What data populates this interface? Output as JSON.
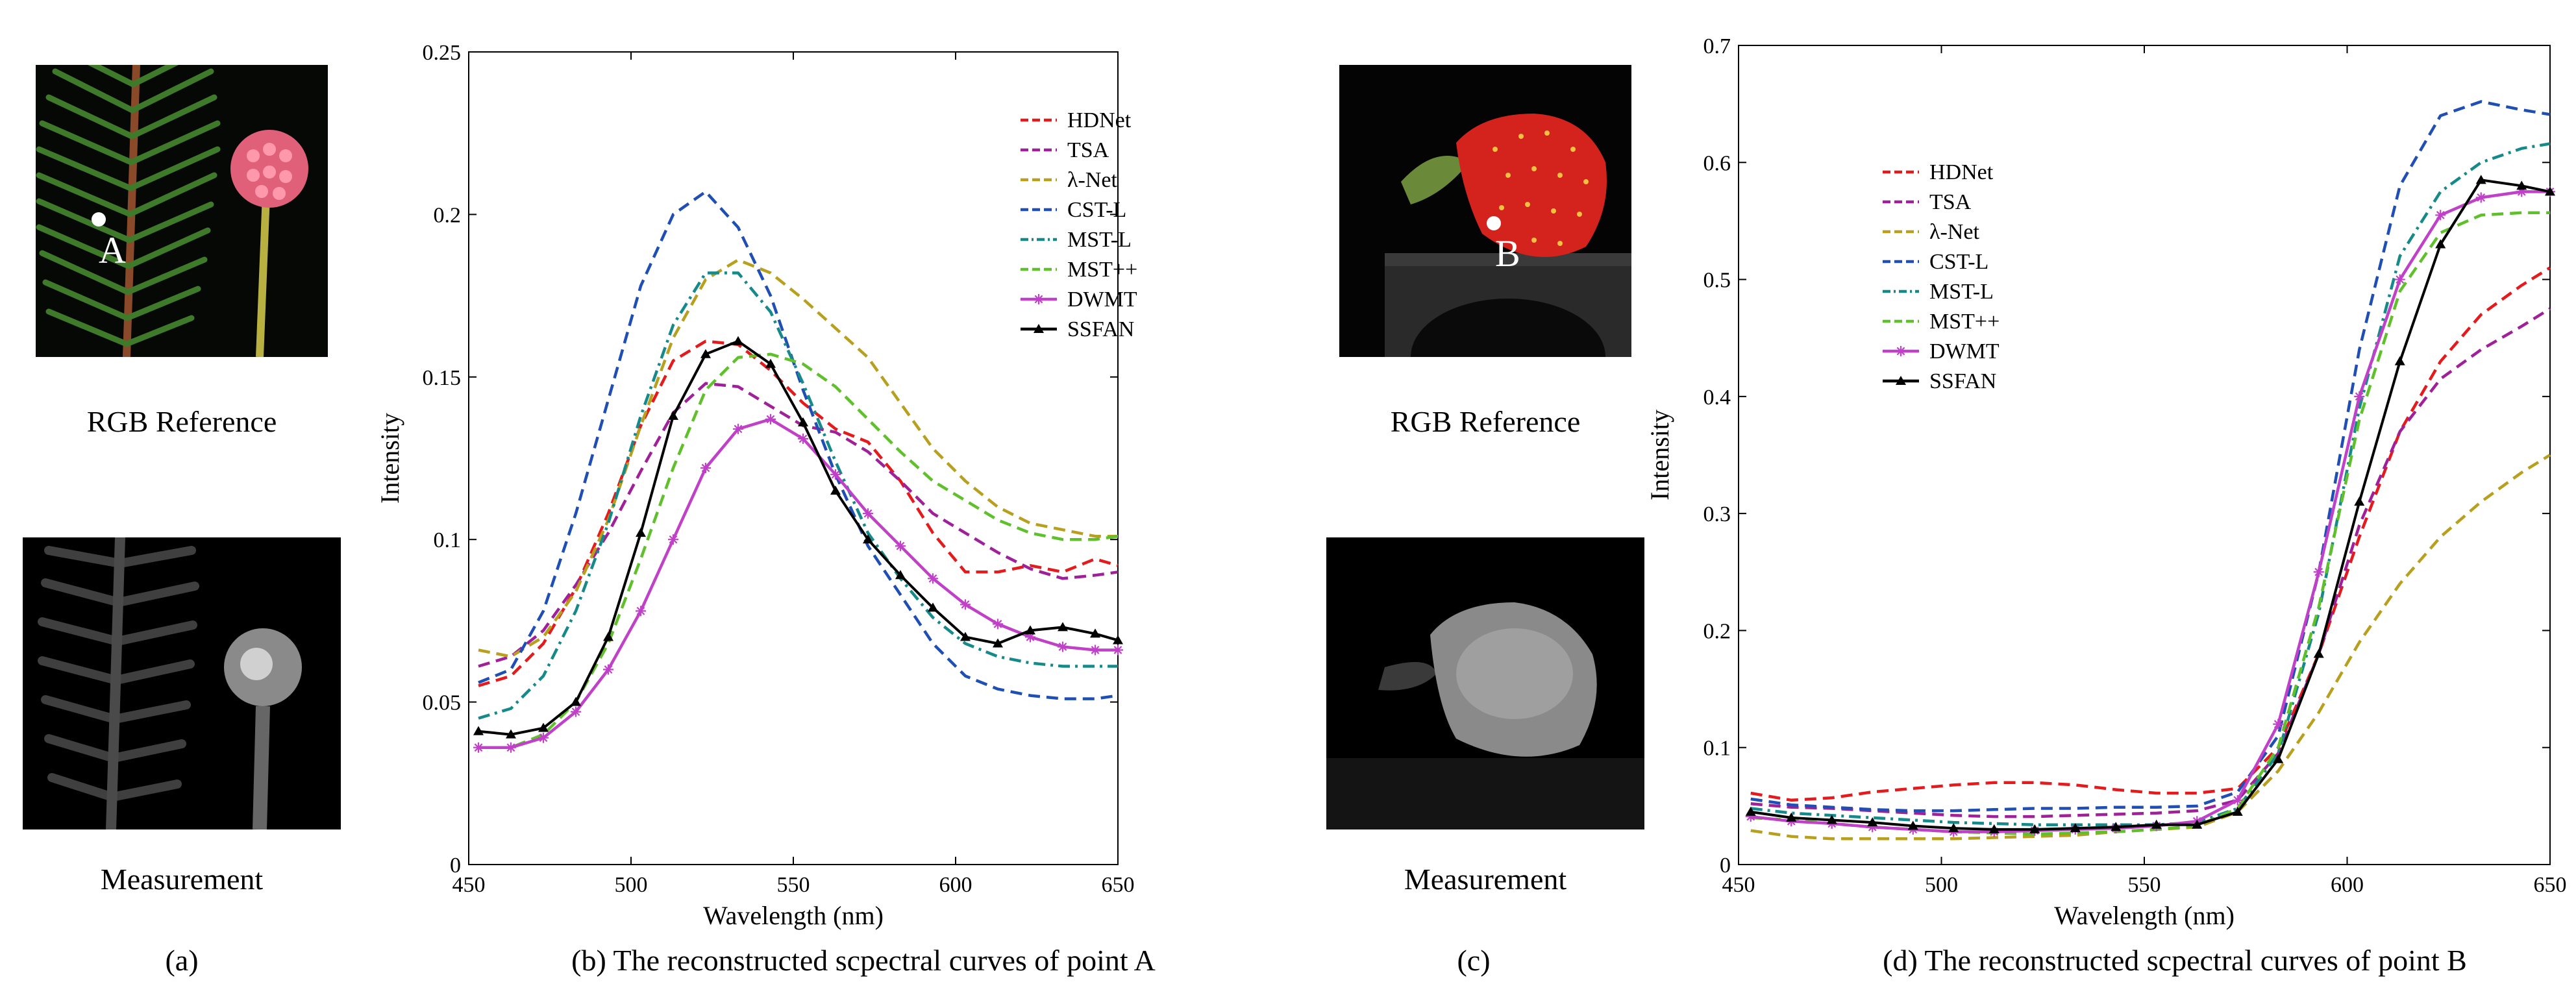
{
  "panels": {
    "a": {
      "rgb_label": "RGB Reference",
      "meas_label": "Measurement",
      "letter": "(a)",
      "point_label": "A"
    },
    "b": {
      "caption": "(b) The reconstructed scpectral curves of point A"
    },
    "c": {
      "rgb_label": "RGB Reference",
      "meas_label": "Measurement",
      "letter": "(c)",
      "point_label": "B"
    },
    "d": {
      "caption": "(d) The reconstructed scpectral curves of point B"
    }
  },
  "chart_data": [
    {
      "id": "pointA",
      "type": "line",
      "title": "",
      "xlabel": "Wavelength (nm)",
      "ylabel": "Intensity",
      "xlim": [
        450,
        650
      ],
      "ylim": [
        0,
        0.25
      ],
      "xticks": [
        450,
        500,
        550,
        600,
        650
      ],
      "yticks": [
        0,
        0.05,
        0.1,
        0.15,
        0.2,
        0.25
      ],
      "ytick_labels": [
        "0",
        "0.05",
        "0.1",
        "0.15",
        "0.2",
        "0.25"
      ],
      "legend_position": "top-right",
      "x": [
        453,
        463,
        473,
        483,
        493,
        503,
        513,
        523,
        533,
        543,
        553,
        563,
        573,
        583,
        593,
        603,
        613,
        623,
        633,
        643,
        650
      ],
      "series": [
        {
          "name": "HDNet",
          "color": "#e41a1c",
          "dash": "dash",
          "marker": "none",
          "values": [
            0.055,
            0.058,
            0.068,
            0.085,
            0.108,
            0.135,
            0.155,
            0.161,
            0.16,
            0.152,
            0.142,
            0.134,
            0.13,
            0.118,
            0.102,
            0.09,
            0.09,
            0.092,
            0.09,
            0.094,
            0.092
          ]
        },
        {
          "name": "TSA",
          "color": "#a0209a",
          "dash": "dash",
          "marker": "none",
          "values": [
            0.061,
            0.064,
            0.072,
            0.086,
            0.102,
            0.121,
            0.139,
            0.148,
            0.147,
            0.141,
            0.135,
            0.133,
            0.127,
            0.118,
            0.108,
            0.102,
            0.096,
            0.091,
            0.088,
            0.089,
            0.09
          ]
        },
        {
          "name": "λ-Net",
          "color": "#b8a01e",
          "dash": "dash",
          "marker": "none",
          "values": [
            0.066,
            0.064,
            0.07,
            0.084,
            0.106,
            0.135,
            0.162,
            0.18,
            0.186,
            0.182,
            0.174,
            0.165,
            0.156,
            0.142,
            0.128,
            0.118,
            0.11,
            0.105,
            0.103,
            0.101,
            0.101
          ]
        },
        {
          "name": "CST-L",
          "color": "#1f4fb4",
          "dash": "dash",
          "marker": "none",
          "values": [
            0.056,
            0.06,
            0.078,
            0.108,
            0.143,
            0.178,
            0.2,
            0.207,
            0.196,
            0.175,
            0.146,
            0.12,
            0.098,
            0.083,
            0.068,
            0.058,
            0.054,
            0.052,
            0.051,
            0.051,
            0.052
          ]
        },
        {
          "name": "MST-L",
          "color": "#168a8a",
          "dash": "dashdot",
          "marker": "none",
          "values": [
            0.045,
            0.048,
            0.058,
            0.078,
            0.105,
            0.138,
            0.166,
            0.182,
            0.182,
            0.17,
            0.148,
            0.124,
            0.102,
            0.088,
            0.076,
            0.068,
            0.064,
            0.062,
            0.061,
            0.061,
            0.061
          ]
        },
        {
          "name": "MST++",
          "color": "#5fc02c",
          "dash": "dash",
          "marker": "none",
          "values": [
            0.036,
            0.036,
            0.04,
            0.05,
            0.068,
            0.094,
            0.122,
            0.146,
            0.156,
            0.157,
            0.154,
            0.147,
            0.137,
            0.127,
            0.118,
            0.112,
            0.106,
            0.102,
            0.1,
            0.1,
            0.101
          ]
        },
        {
          "name": "DWMT",
          "color": "#c040c8",
          "dash": "solid",
          "marker": "star",
          "values": [
            0.036,
            0.036,
            0.039,
            0.047,
            0.06,
            0.078,
            0.1,
            0.122,
            0.134,
            0.137,
            0.131,
            0.12,
            0.108,
            0.098,
            0.088,
            0.08,
            0.074,
            0.07,
            0.067,
            0.066,
            0.066
          ]
        },
        {
          "name": "SSFAN",
          "color": "#000000",
          "dash": "solid",
          "marker": "triangle",
          "values": [
            0.041,
            0.04,
            0.042,
            0.05,
            0.07,
            0.102,
            0.138,
            0.157,
            0.161,
            0.154,
            0.136,
            0.115,
            0.1,
            0.089,
            0.079,
            0.07,
            0.068,
            0.072,
            0.073,
            0.071,
            0.069
          ]
        }
      ]
    },
    {
      "id": "pointB",
      "type": "line",
      "title": "",
      "xlabel": "Wavelength (nm)",
      "ylabel": "Intensity",
      "xlim": [
        450,
        650
      ],
      "ylim": [
        0,
        0.7
      ],
      "xticks": [
        450,
        500,
        550,
        600,
        650
      ],
      "yticks": [
        0,
        0.1,
        0.2,
        0.3,
        0.4,
        0.5,
        0.6,
        0.7
      ],
      "ytick_labels": [
        "0",
        "0.1",
        "0.2",
        "0.3",
        "0.4",
        "0.5",
        "0.6",
        "0.7"
      ],
      "legend_position": "top-left",
      "x": [
        453,
        463,
        473,
        483,
        493,
        503,
        513,
        523,
        533,
        543,
        553,
        563,
        573,
        583,
        593,
        603,
        613,
        623,
        633,
        643,
        650
      ],
      "series": [
        {
          "name": "HDNet",
          "color": "#e41a1c",
          "dash": "dash",
          "marker": "none",
          "values": [
            0.061,
            0.055,
            0.057,
            0.062,
            0.065,
            0.068,
            0.07,
            0.07,
            0.068,
            0.064,
            0.061,
            0.061,
            0.065,
            0.1,
            0.18,
            0.28,
            0.37,
            0.43,
            0.47,
            0.495,
            0.51
          ]
        },
        {
          "name": "TSA",
          "color": "#a0209a",
          "dash": "dash",
          "marker": "none",
          "values": [
            0.052,
            0.049,
            0.048,
            0.046,
            0.044,
            0.042,
            0.041,
            0.041,
            0.042,
            0.043,
            0.044,
            0.046,
            0.055,
            0.095,
            0.18,
            0.29,
            0.37,
            0.415,
            0.44,
            0.46,
            0.475
          ]
        },
        {
          "name": "λ-Net",
          "color": "#b8a01e",
          "dash": "dash",
          "marker": "none",
          "values": [
            0.029,
            0.024,
            0.022,
            0.022,
            0.022,
            0.022,
            0.023,
            0.024,
            0.025,
            0.028,
            0.03,
            0.032,
            0.045,
            0.08,
            0.13,
            0.19,
            0.24,
            0.28,
            0.31,
            0.335,
            0.35
          ]
        },
        {
          "name": "CST-L",
          "color": "#1f4fb4",
          "dash": "dash",
          "marker": "none",
          "values": [
            0.056,
            0.051,
            0.049,
            0.047,
            0.046,
            0.046,
            0.047,
            0.048,
            0.048,
            0.049,
            0.049,
            0.05,
            0.062,
            0.11,
            0.25,
            0.44,
            0.58,
            0.64,
            0.652,
            0.645,
            0.641
          ]
        },
        {
          "name": "MST-L",
          "color": "#168a8a",
          "dash": "dashdot",
          "marker": "none",
          "values": [
            0.048,
            0.044,
            0.042,
            0.04,
            0.038,
            0.036,
            0.035,
            0.034,
            0.034,
            0.034,
            0.034,
            0.036,
            0.048,
            0.095,
            0.215,
            0.39,
            0.52,
            0.575,
            0.6,
            0.612,
            0.616
          ]
        },
        {
          "name": "MST++",
          "color": "#5fc02c",
          "dash": "dash",
          "marker": "none",
          "values": [
            0.04,
            0.038,
            0.035,
            0.032,
            0.03,
            0.028,
            0.027,
            0.026,
            0.027,
            0.028,
            0.03,
            0.033,
            0.048,
            0.1,
            0.22,
            0.38,
            0.49,
            0.54,
            0.555,
            0.557,
            0.557
          ]
        },
        {
          "name": "DWMT",
          "color": "#c040c8",
          "dash": "solid",
          "marker": "star",
          "values": [
            0.041,
            0.037,
            0.035,
            0.032,
            0.03,
            0.028,
            0.028,
            0.029,
            0.03,
            0.031,
            0.033,
            0.037,
            0.055,
            0.12,
            0.25,
            0.4,
            0.5,
            0.555,
            0.57,
            0.575,
            0.575
          ]
        },
        {
          "name": "SSFAN",
          "color": "#000000",
          "dash": "solid",
          "marker": "triangle",
          "values": [
            0.045,
            0.04,
            0.038,
            0.036,
            0.033,
            0.031,
            0.03,
            0.03,
            0.031,
            0.032,
            0.034,
            0.034,
            0.045,
            0.09,
            0.18,
            0.31,
            0.43,
            0.53,
            0.585,
            0.58,
            0.575
          ]
        }
      ]
    }
  ]
}
